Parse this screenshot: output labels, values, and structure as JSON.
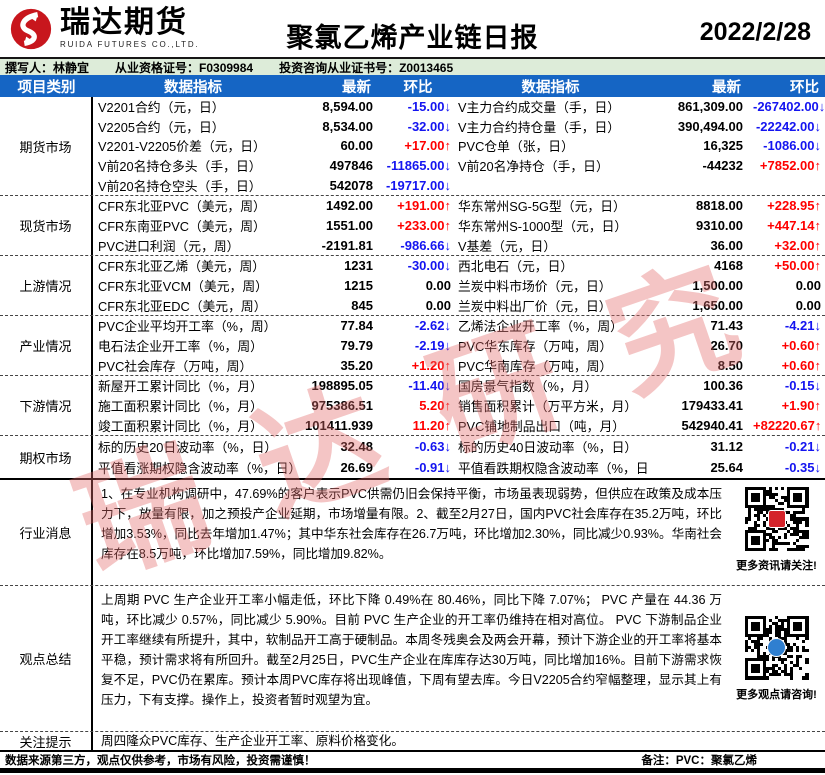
{
  "header": {
    "brand_cn": "瑞达期货",
    "brand_en": "RUIDA FUTURES CO.,LTD.",
    "title": "聚氯乙烯产业链日报",
    "date": "2022/2/28"
  },
  "meta": {
    "author": "撰写人：林静宜",
    "cert1": "从业资格证号：F0309984",
    "cert2": "投资咨询从业证书号：Z0013465"
  },
  "table_header": {
    "category": "项目类别",
    "indicator_left": "数据指标",
    "latest_left": "最新",
    "change_left": "环比",
    "indicator_right": "数据指标",
    "latest_right": "最新",
    "change_right": "环比"
  },
  "colors": {
    "up": "#ff0000",
    "down": "#1414f0",
    "header_bg": "#1565c4",
    "meta_bg": "#ddecd9"
  },
  "sections": [
    {
      "label": "期货市场",
      "rows": [
        {
          "l": [
            "V2201合约（元，日）",
            "8,594.00",
            "-15.00",
            "down"
          ],
          "r": [
            "V主力合约成交量（手，日）",
            "861,309.00",
            "-267402.00",
            "down"
          ]
        },
        {
          "l": [
            "V2205合约（元，日）",
            "8,534.00",
            "-32.00",
            "down"
          ],
          "r": [
            "V主力合约持仓量（手，日）",
            "390,494.00",
            "-22242.00",
            "down"
          ]
        },
        {
          "l": [
            "V2201-V2205价差（元，日）",
            "60.00",
            "+17.00",
            "up"
          ],
          "r": [
            "PVC仓单（张，日）",
            "16,325",
            "-1086.00",
            "down"
          ]
        },
        {
          "l": [
            "V前20名持仓多头（手，日）",
            "497846",
            "-11865.00",
            "down"
          ],
          "r": [
            "V前20名净持仓（手，日）",
            "-44232",
            "+7852.00",
            "up"
          ]
        },
        {
          "l": [
            "V前20名持仓空头（手，日）",
            "542078",
            "-19717.00",
            "down"
          ],
          "r": [
            "",
            "",
            "",
            ""
          ]
        }
      ]
    },
    {
      "label": "现货市场",
      "rows": [
        {
          "l": [
            "CFR东北亚PVC（美元，周）",
            "1492.00",
            "+191.00",
            "up"
          ],
          "r": [
            "华东常州SG-5G型（元，日）",
            "8818.00",
            "+228.95",
            "up"
          ]
        },
        {
          "l": [
            "CFR东南亚PVC（美元，周）",
            "1551.00",
            "+233.00",
            "up"
          ],
          "r": [
            "华东常州S-1000型（元，日）",
            "9310.00",
            "+447.14",
            "up"
          ]
        },
        {
          "l": [
            "PVC进口利润（元，周）",
            "-2191.81",
            "-986.66",
            "down"
          ],
          "r": [
            "V基差（元，日）",
            "36.00",
            "+32.00",
            "up"
          ]
        }
      ]
    },
    {
      "label": "上游情况",
      "rows": [
        {
          "l": [
            "CFR东北亚乙烯（美元，周）",
            "1231",
            "-30.00",
            "down"
          ],
          "r": [
            "西北电石（元，日）",
            "4168",
            "+50.00",
            "up"
          ]
        },
        {
          "l": [
            "CFR东北亚VCM（美元，周）",
            "1215",
            "0.00",
            "flat"
          ],
          "r": [
            "兰炭中料市场价（元，日）",
            "1,500.00",
            "0.00",
            "flat"
          ]
        },
        {
          "l": [
            "CFR东北亚EDC（美元，周）",
            "845",
            "0.00",
            "flat"
          ],
          "r": [
            "兰炭中料出厂价（元，日）",
            "1,650.00",
            "0.00",
            "flat"
          ]
        }
      ]
    },
    {
      "label": "产业情况",
      "rows": [
        {
          "l": [
            "PVC企业平均开工率（%，周）",
            "77.84",
            "-2.62",
            "down"
          ],
          "r": [
            "乙烯法企业开工率（%，周）",
            "71.43",
            "-4.21",
            "down"
          ]
        },
        {
          "l": [
            "电石法企业开工率（%，周）",
            "79.79",
            "-2.19",
            "down"
          ],
          "r": [
            "PVC华东库存（万吨，周）",
            "26.70",
            "+0.60",
            "up"
          ]
        },
        {
          "l": [
            "PVC社会库存（万吨，周）",
            "35.20",
            "+1.20",
            "up"
          ],
          "r": [
            "PVC华南库存（万吨，周）",
            "8.50",
            "+0.60",
            "up"
          ]
        }
      ]
    },
    {
      "label": "下游情况",
      "rows": [
        {
          "l": [
            "新屋开工累计同比（%，月）",
            "198895.05",
            "-11.40",
            "down"
          ],
          "r": [
            "国房景气指数（%，月）",
            "100.36",
            "-0.15",
            "down"
          ]
        },
        {
          "l": [
            "施工面积累计同比（%，月）",
            "975386.51",
            "5.20",
            "up"
          ],
          "r": [
            "销售面积累计（万平方米，月）",
            "179433.41",
            "+1.90",
            "up"
          ]
        },
        {
          "l": [
            "竣工面积累计同比（%，月）",
            "101411.939",
            "11.20",
            "up"
          ],
          "r": [
            "PVC铺地制品出口（吨，月）",
            "542940.41",
            "+82220.67",
            "up"
          ]
        }
      ]
    },
    {
      "label": "期权市场",
      "rows": [
        {
          "l": [
            "标的历史20日波动率（%，日）",
            "32.48",
            "-0.63",
            "down"
          ],
          "r": [
            "标的历史40日波动率（%，日）",
            "31.12",
            "-0.21",
            "down"
          ]
        },
        {
          "l": [
            "平值看涨期权隐含波动率（%，日）",
            "26.69",
            "-0.91",
            "down"
          ],
          "r": [
            "平值看跌期权隐含波动率（%，日）",
            "25.64",
            "-0.35",
            "down"
          ]
        }
      ]
    }
  ],
  "news": {
    "label": "行业消息",
    "text": "1、在专业机构调研中，47.69%的客户表示PVC供需仍旧会保持平衡，市场虽表现弱势，但供应在政策及成本压力下，放量有限，加之预投产企业延期，市场增量有限。2、截至2月27日，国内PVC社会库存在35.2万吨，环比增加3.53%，同比去年增加1.47%；其中华东社会库存在26.7万吨，环比增加2.30%，同比减少0.93%。华南社会库存在8.5万吨，环比增加7.59%，同比增加9.82%。",
    "qr_caption": "更多资讯请关注!"
  },
  "opinion": {
    "label": "观点总结",
    "text": "上周期 PVC 生产企业开工率小幅走低，环比下降 0.49%在 80.46%，同比下降 7.07%； PVC 产量在 44.36 万吨，环比减少 0.57%，同比减少 5.90%。目前 PVC 生产企业的开工率仍维持在相对高位。 PVC 下游制品企业开工率继续有所提升，其中，软制品开工高于硬制品。本周冬残奥会及两会开幕，预计下游企业的开工率将基本平稳，预计需求将有所回升。截至2月25日，PVC生产企业在库库存达30万吨，同比增加16%。目前下游需求恢复不足，PVC仍在累库。预计本周PVC库存将出现峰值，下周有望去库。今日V2205合约窄幅整理，显示其上有压力，下有支撑。操作上，投资者暂时观望为宜。",
    "qr_caption": "更多观点请咨询!"
  },
  "alert": {
    "label": "关注提示",
    "text": "周四隆众PVC库存、生产企业开工率、原料价格变化。"
  },
  "watermark": "瑞达研究",
  "footer": {
    "disclaimer": "数据来源第三方，观点仅供参考，市场有风险，投资需谨慎！",
    "note": "备注：PVC：聚氯乙烯"
  },
  "arrows": {
    "up": "↑",
    "down": "↓"
  }
}
